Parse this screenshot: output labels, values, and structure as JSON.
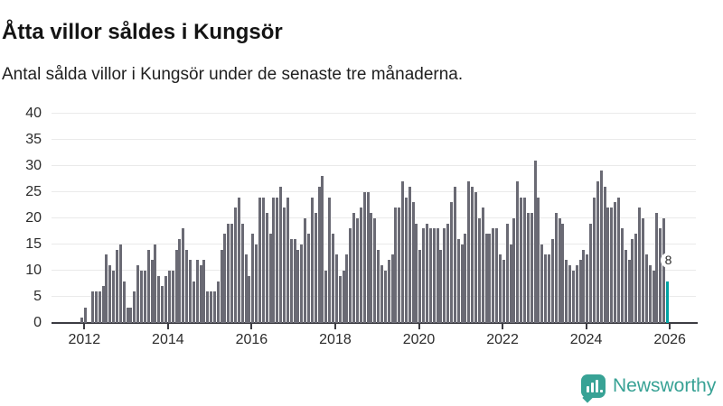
{
  "header": {
    "title": "Åtta villor såldes i Kungsör",
    "subtitle": "Antal sålda villor i Kungsör under de senaste tre månaderna."
  },
  "chart_data": {
    "type": "bar",
    "title": "Åtta villor såldes i Kungsör",
    "subtitle": "Antal sålda villor i Kungsör under de senaste tre månaderna.",
    "x_start_month": "2011-12",
    "x_tick_labels": [
      "2012",
      "2014",
      "2016",
      "2018",
      "2020",
      "2022",
      "2024",
      "2026"
    ],
    "y_ticks": [
      0,
      5,
      10,
      15,
      20,
      25,
      30,
      35,
      40
    ],
    "ylim": [
      0,
      40
    ],
    "grid": true,
    "legend": false,
    "bar_color": "#6a6a74",
    "values": [
      1,
      3,
      0,
      6,
      6,
      6,
      7,
      13,
      11,
      10,
      14,
      15,
      8,
      3,
      3,
      6,
      11,
      10,
      10,
      14,
      12,
      15,
      9,
      7,
      9,
      10,
      10,
      14,
      16,
      18,
      14,
      12,
      8,
      12,
      11,
      12,
      6,
      6,
      6,
      8,
      14,
      17,
      19,
      19,
      22,
      24,
      19,
      13,
      9,
      17,
      15,
      24,
      24,
      21,
      17,
      24,
      24,
      26,
      22,
      24,
      16,
      16,
      14,
      15,
      20,
      17,
      24,
      21,
      26,
      28,
      10,
      24,
      17,
      13,
      9,
      10,
      13,
      18,
      21,
      20,
      22,
      25,
      25,
      21,
      20,
      14,
      11,
      10,
      12,
      13,
      22,
      22,
      27,
      24,
      26,
      23,
      19,
      14,
      18,
      19,
      18,
      18,
      18,
      14,
      18,
      19,
      23,
      26,
      16,
      15,
      17,
      27,
      26,
      25,
      20,
      22,
      17,
      17,
      18,
      18,
      13,
      12,
      19,
      15,
      20,
      27,
      24,
      24,
      21,
      21,
      31,
      24,
      15,
      13,
      13,
      16,
      21,
      20,
      19,
      12,
      11,
      10,
      11,
      12,
      14,
      13,
      19,
      24,
      27,
      29,
      26,
      22,
      22,
      23,
      24,
      18,
      14,
      12,
      16,
      17,
      22,
      20,
      13,
      11,
      10,
      21,
      18,
      20,
      8
    ],
    "highlight": {
      "last_value_label": "8",
      "value": 8,
      "color": "#00a3a3"
    }
  },
  "footer": {
    "brand": "Newsworthy",
    "brand_color": "#38a295",
    "logo_icon": "bar-chart-speech-bubble-icon"
  },
  "colors": {
    "bar": "#6a6a74",
    "highlight": "#00a3a3",
    "grid": "#eaeaea",
    "axis": "#3c3c42",
    "text": "#2b2b2b"
  }
}
